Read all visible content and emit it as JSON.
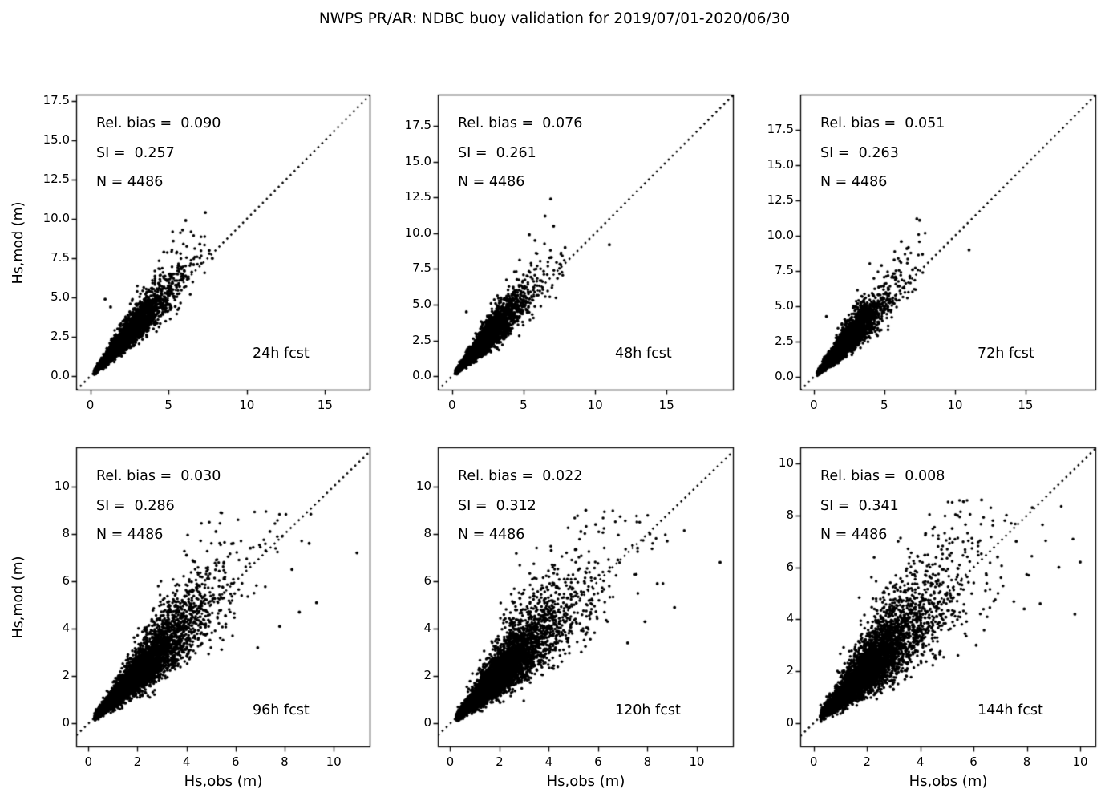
{
  "title": "NWPS PR/AR: NDBC buoy validation for 2019/07/01-2020/06/30",
  "axes_labels": {
    "x": "Hs,obs (m)",
    "y": "Hs,mod (m)"
  },
  "marker_color": "#000000",
  "background": "#ffffff",
  "chart_data": [
    {
      "type": "scatter",
      "label": "24h fcst",
      "stats": {
        "rel_bias": 0.09,
        "si": 0.257,
        "n": 4486
      },
      "stats_lines": [
        "Rel. bias =  0.090",
        "SI =  0.257",
        "N = 4486"
      ],
      "xlabel": "Hs,obs (m)",
      "ylabel": "Hs,mod (m)",
      "xlim": [
        -0.9,
        17.9
      ],
      "ylim": [
        -0.9,
        17.9
      ],
      "xticks": [
        0,
        5,
        10,
        15
      ],
      "xtick_labels": [
        "0",
        "5",
        "10",
        "15"
      ],
      "yticks": [
        0,
        2.5,
        5,
        7.5,
        10,
        12.5,
        15,
        17.5
      ],
      "ytick_labels": [
        "0.0",
        "2.5",
        "5.0",
        "7.5",
        "10.0",
        "12.5",
        "15.0",
        "17.5"
      ],
      "identity_line": "dotted 1:1",
      "grid": false,
      "cloud": {
        "seed": 11,
        "n": 4486,
        "sd": 0.16,
        "ycap": 10.45,
        "xcap": 7.8
      },
      "outliers": [
        [
          7.35,
          10.4
        ],
        [
          6.1,
          9.9
        ],
        [
          5.9,
          9.3
        ],
        [
          7.0,
          8.4
        ],
        [
          7.6,
          8.0
        ],
        [
          6.6,
          7.1
        ],
        [
          5.3,
          8.6
        ],
        [
          0.95,
          4.9
        ],
        [
          1.3,
          4.4
        ],
        [
          7.8,
          7.5
        ],
        [
          4.7,
          7.9
        ]
      ]
    },
    {
      "type": "scatter",
      "label": "48h fcst",
      "stats": {
        "rel_bias": 0.076,
        "si": 0.261,
        "n": 4486
      },
      "stats_lines": [
        "Rel. bias =  0.076",
        "SI =  0.261",
        "N = 4486"
      ],
      "xlabel": "Hs,obs (m)",
      "ylabel": "Hs,mod (m)",
      "xlim": [
        -1.0,
        19.7
      ],
      "ylim": [
        -1.0,
        19.7
      ],
      "xticks": [
        0,
        5,
        10,
        15
      ],
      "xtick_labels": [
        "0",
        "5",
        "10",
        "15"
      ],
      "yticks": [
        0,
        2.5,
        5,
        7.5,
        10,
        12.5,
        15,
        17.5
      ],
      "ytick_labels": [
        "0.0",
        "2.5",
        "5.0",
        "7.5",
        "10.0",
        "12.5",
        "15.0",
        "17.5"
      ],
      "identity_line": "dotted 1:1",
      "grid": false,
      "cloud": {
        "seed": 22,
        "n": 4486,
        "sd": 0.175,
        "ycap": 12.5,
        "xcap": 7.9
      },
      "outliers": [
        [
          6.9,
          12.4
        ],
        [
          6.5,
          11.2
        ],
        [
          7.1,
          10.5
        ],
        [
          11.0,
          9.2
        ],
        [
          5.8,
          9.5
        ],
        [
          6.9,
          8.3
        ],
        [
          7.6,
          7.8
        ],
        [
          1.0,
          4.5
        ],
        [
          5.4,
          9.9
        ],
        [
          7.9,
          9.0
        ]
      ]
    },
    {
      "type": "scatter",
      "label": "72h fcst",
      "stats": {
        "rel_bias": 0.051,
        "si": 0.263,
        "n": 4486
      },
      "stats_lines": [
        "Rel. bias =  0.051",
        "SI =  0.263",
        "N = 4486"
      ],
      "xlabel": "Hs,obs (m)",
      "ylabel": "Hs,mod (m)",
      "xlim": [
        -0.95,
        20.0
      ],
      "ylim": [
        -0.95,
        20.0
      ],
      "xticks": [
        0,
        5,
        10,
        15
      ],
      "xtick_labels": [
        "0",
        "5",
        "10",
        "15"
      ],
      "yticks": [
        0,
        2.5,
        5,
        7.5,
        10,
        12.5,
        15,
        17.5
      ],
      "ytick_labels": [
        "0.0",
        "2.5",
        "5.0",
        "7.5",
        "10.0",
        "12.5",
        "15.0",
        "17.5"
      ],
      "identity_line": "dotted 1:1",
      "grid": false,
      "cloud": {
        "seed": 33,
        "n": 4486,
        "sd": 0.185,
        "ycap": 11.3,
        "xcap": 7.9
      },
      "outliers": [
        [
          7.3,
          11.2
        ],
        [
          7.5,
          11.1
        ],
        [
          6.6,
          9.1
        ],
        [
          11.0,
          9.0
        ],
        [
          5.7,
          8.3
        ],
        [
          7.0,
          7.6
        ],
        [
          0.9,
          4.3
        ],
        [
          7.7,
          8.7
        ],
        [
          4.8,
          7.9
        ],
        [
          6.2,
          9.6
        ]
      ]
    },
    {
      "type": "scatter",
      "label": "96h fcst",
      "stats": {
        "rel_bias": 0.03,
        "si": 0.286,
        "n": 4486
      },
      "stats_lines": [
        "Rel. bias =  0.030",
        "SI =  0.286",
        "N = 4486"
      ],
      "xlabel": "Hs,obs (m)",
      "ylabel": "Hs,mod (m)",
      "xlim": [
        -0.5,
        11.5
      ],
      "ylim": [
        -1.0,
        11.65
      ],
      "xticks": [
        0,
        2,
        4,
        6,
        8,
        10
      ],
      "xtick_labels": [
        "0",
        "2",
        "4",
        "6",
        "8",
        "10"
      ],
      "yticks": [
        0,
        2,
        4,
        6,
        8,
        10
      ],
      "ytick_labels": [
        "0",
        "2",
        "4",
        "6",
        "8",
        "10"
      ],
      "identity_line": "dotted 1:1",
      "grid": false,
      "cloud": {
        "seed": 44,
        "n": 4486,
        "sd": 0.21,
        "ycap": 8.95,
        "xcap": 9.5
      },
      "outliers": [
        [
          5.4,
          8.9
        ],
        [
          5.2,
          8.1
        ],
        [
          10.95,
          7.2
        ],
        [
          7.9,
          7.9
        ],
        [
          7.4,
          8.1
        ],
        [
          6.6,
          7.4
        ],
        [
          4.0,
          7.1
        ],
        [
          8.3,
          6.5
        ],
        [
          9.0,
          7.6
        ],
        [
          7.8,
          4.1
        ],
        [
          8.6,
          4.7
        ],
        [
          9.3,
          5.1
        ],
        [
          6.9,
          3.2
        ],
        [
          5.9,
          7.6
        ]
      ]
    },
    {
      "type": "scatter",
      "label": "120h fcst",
      "stats": {
        "rel_bias": 0.022,
        "si": 0.312,
        "n": 4486
      },
      "stats_lines": [
        "Rel. bias =  0.022",
        "SI =  0.312",
        "N = 4486"
      ],
      "xlabel": "Hs,obs (m)",
      "ylabel": "Hs,mod (m)",
      "xlim": [
        -0.5,
        11.5
      ],
      "ylim": [
        -1.0,
        11.65
      ],
      "xticks": [
        0,
        2,
        4,
        6,
        8,
        10
      ],
      "xtick_labels": [
        "0",
        "2",
        "4",
        "6",
        "8",
        "10"
      ],
      "yticks": [
        0,
        2,
        4,
        6,
        8,
        10
      ],
      "ytick_labels": [
        "0",
        "2",
        "4",
        "6",
        "8",
        "10"
      ],
      "identity_line": "dotted 1:1",
      "grid": false,
      "cloud": {
        "seed": 55,
        "n": 4486,
        "sd": 0.245,
        "ycap": 9.0,
        "xcap": 9.5
      },
      "outliers": [
        [
          5.5,
          9.0
        ],
        [
          5.3,
          8.1
        ],
        [
          10.95,
          6.8
        ],
        [
          8.1,
          8.0
        ],
        [
          7.6,
          7.4
        ],
        [
          6.8,
          6.9
        ],
        [
          4.1,
          7.3
        ],
        [
          8.4,
          5.9
        ],
        [
          9.1,
          4.9
        ],
        [
          7.9,
          4.3
        ],
        [
          5.9,
          8.4
        ],
        [
          8.8,
          7.7
        ],
        [
          7.2,
          3.4
        ]
      ]
    },
    {
      "type": "scatter",
      "label": "144h fcst",
      "stats": {
        "rel_bias": 0.008,
        "si": 0.341,
        "n": 4486
      },
      "stats_lines": [
        "Rel. bias =  0.008",
        "SI =  0.341",
        "N = 4486"
      ],
      "xlabel": "Hs,obs (m)",
      "ylabel": "Hs,mod (m)",
      "xlim": [
        -0.5,
        10.6
      ],
      "ylim": [
        -0.93,
        10.62
      ],
      "xticks": [
        0,
        2,
        4,
        6,
        8,
        10
      ],
      "xtick_labels": [
        "0",
        "2",
        "4",
        "6",
        "8",
        "10"
      ],
      "yticks": [
        0,
        2,
        4,
        6,
        8,
        10
      ],
      "ytick_labels": [
        "0",
        "2",
        "4",
        "6",
        "8",
        "10"
      ],
      "identity_line": "dotted 1:1",
      "grid": false,
      "cloud": {
        "seed": 66,
        "n": 4486,
        "sd": 0.275,
        "ycap": 8.65,
        "xcap": 9.8
      },
      "outliers": [
        [
          6.3,
          8.6
        ],
        [
          5.4,
          8.0
        ],
        [
          8.2,
          8.3
        ],
        [
          7.6,
          7.0
        ],
        [
          6.9,
          6.4
        ],
        [
          4.2,
          7.3
        ],
        [
          8.5,
          4.6
        ],
        [
          9.2,
          6.0
        ],
        [
          7.9,
          4.4
        ],
        [
          5.2,
          7.5
        ],
        [
          9.8,
          4.2
        ],
        [
          6.1,
          3.0
        ],
        [
          10.0,
          6.2
        ]
      ]
    }
  ]
}
